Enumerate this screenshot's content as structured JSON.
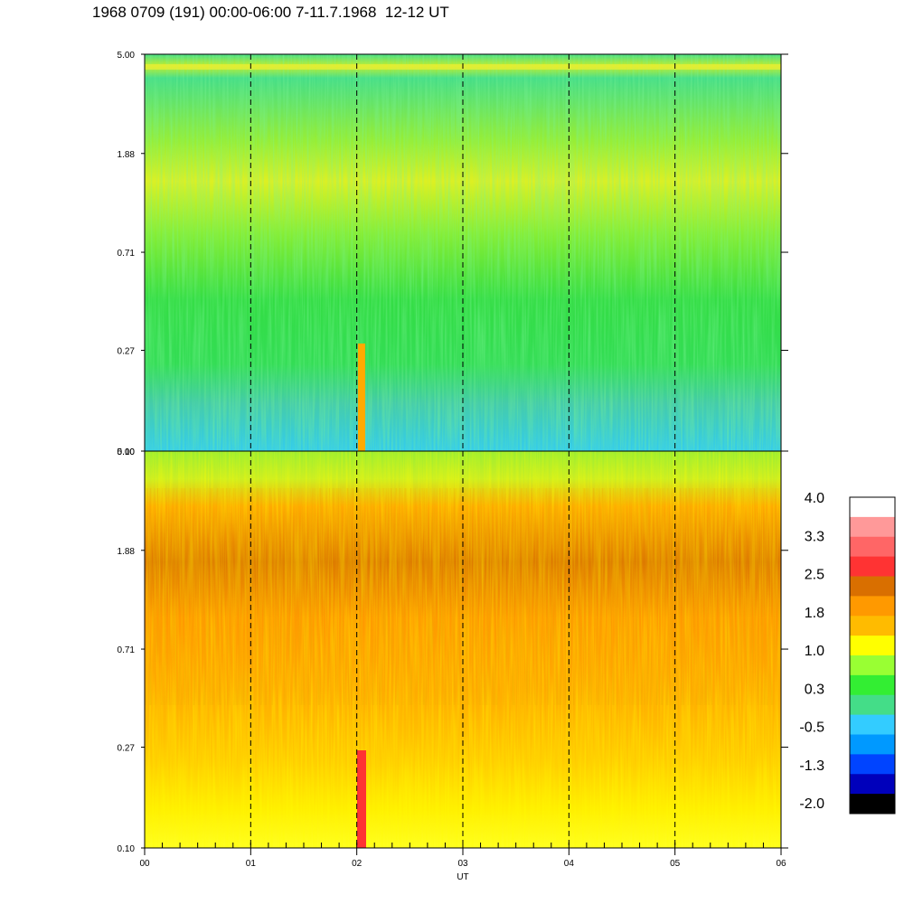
{
  "title": "1968 0709 (191) 00:00-06:00 7-11.7.1968  12-12 UT",
  "chart_data": [
    {
      "type": "heatmap",
      "panel": "upper",
      "x_ticks": [
        "00",
        "01",
        "02",
        "03",
        "04",
        "05",
        "06"
      ],
      "xlim": [
        0,
        6
      ],
      "y_scale": "log",
      "y_ticks": [
        "5.00",
        "1.88",
        "0.71",
        "0.27",
        "0.10"
      ],
      "ylim": [
        0.1,
        5.0
      ],
      "dashed_hour_lines": [
        1,
        2,
        3,
        4,
        5
      ],
      "dominant_levels": [
        "green",
        "yellow-green",
        "cyan"
      ]
    },
    {
      "type": "heatmap",
      "panel": "lower",
      "x_ticks": [
        "00",
        "01",
        "02",
        "03",
        "04",
        "05",
        "06"
      ],
      "xlim": [
        0,
        6
      ],
      "xlabel": "UT",
      "y_scale": "log",
      "y_ticks": [
        "5.00",
        "1.88",
        "0.71",
        "0.27",
        "0.10"
      ],
      "ylim": [
        0.1,
        5.0
      ],
      "dashed_hour_lines": [
        1,
        2,
        3,
        4,
        5
      ],
      "dominant_levels": [
        "orange",
        "yellow",
        "dark-orange"
      ]
    }
  ],
  "colorbar": {
    "labels": [
      "4.0",
      "3.3",
      "2.5",
      "1.8",
      "1.0",
      "0.3",
      "-0.5",
      "-1.3",
      "-2.0"
    ],
    "colors": [
      "#ffffff",
      "#ff9999",
      "#ff6666",
      "#ff3333",
      "#d96f00",
      "#ff9900",
      "#ffbb00",
      "#ffff00",
      "#99ff33",
      "#33ee33",
      "#44dd88",
      "#33ccff",
      "#0099ff",
      "#0044ff",
      "#0000bb",
      "#000000"
    ]
  }
}
